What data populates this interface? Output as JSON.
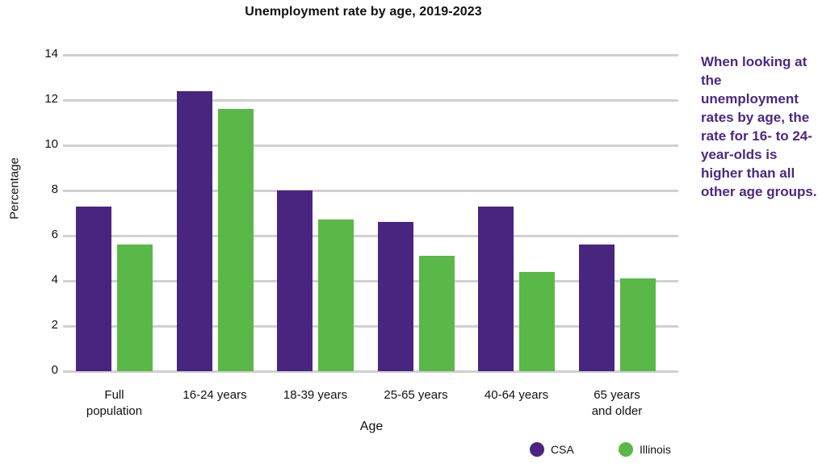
{
  "chart_data": {
    "type": "bar",
    "title": "Unemployment rate by age, 2019-2023",
    "xlabel": "Age",
    "ylabel": "Percentage",
    "ylim": [
      0,
      14
    ],
    "yticks": [
      0,
      2,
      4,
      6,
      8,
      10,
      12,
      14
    ],
    "grid": true,
    "legend_position": "bottom-right",
    "categories": [
      "Full population",
      "16-24 years",
      "18-39 years",
      "25-65 years",
      "40-64 years",
      "65 years and older"
    ],
    "category_lines": [
      [
        "Full",
        "population"
      ],
      [
        "16-24 years"
      ],
      [
        "18-39 years"
      ],
      [
        "25-65 years"
      ],
      [
        "40-64 years"
      ],
      [
        "65 years",
        "and older"
      ]
    ],
    "series": [
      {
        "name": "CSA",
        "color": "#48257f",
        "values": [
          7.3,
          12.4,
          8.0,
          6.6,
          7.3,
          5.6
        ]
      },
      {
        "name": "Illinois",
        "color": "#5ab848",
        "values": [
          5.6,
          11.6,
          6.7,
          5.1,
          4.4,
          4.1
        ]
      }
    ]
  },
  "annotation": {
    "text": "When looking at the unemployment rates by age, the rate for 16- to 24-year-olds is higher than all other age groups.",
    "color": "#4b2882"
  },
  "legend": {
    "items": [
      {
        "label": "CSA",
        "color": "#48257f"
      },
      {
        "label": "Illinois",
        "color": "#5ab848"
      }
    ]
  }
}
